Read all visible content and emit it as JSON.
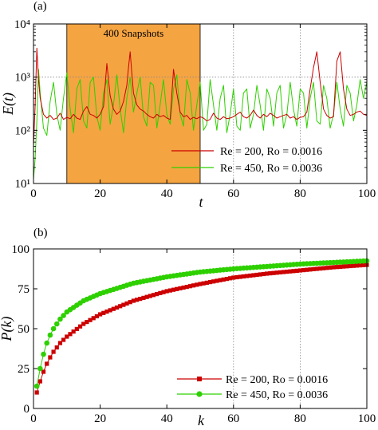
{
  "colors": {
    "red": "#cc0000",
    "green": "#2ed000",
    "highlight": "#f5a442",
    "refline": "#888888"
  },
  "chart_data": [
    {
      "type": "line",
      "panel_label": "(a)",
      "xlabel": "t",
      "ylabel": "E(t)",
      "xlim": [
        0,
        100
      ],
      "ylim": [
        10,
        10000
      ],
      "yscale": "log",
      "x_ticks": [
        "0",
        "20",
        "40",
        "60",
        "80",
        "100"
      ],
      "y_ticks": [
        "10¹",
        "10²",
        "10³",
        "10⁴"
      ],
      "y_tick_values": [
        10,
        100,
        1000,
        10000
      ],
      "ref_vlines": [
        60,
        80
      ],
      "ref_hline": 1000,
      "highlight": {
        "x_start": 10,
        "x_end": 50,
        "label": "400 Snapshots"
      },
      "legend_position": "bottom-right",
      "series": [
        {
          "name": "Re = 200, Ro = 0.0016",
          "color": "#cc0000",
          "x": [
            0,
            0.5,
            1,
            1.5,
            2,
            3,
            4,
            5,
            6,
            7,
            8,
            9,
            10,
            11,
            12,
            13,
            14,
            15,
            16,
            17,
            18,
            19,
            20,
            21,
            22,
            23,
            24,
            25,
            26,
            27,
            28,
            28.5,
            29,
            29.5,
            30,
            31,
            32,
            33,
            34,
            35,
            36,
            37,
            38,
            39,
            40,
            41,
            42,
            43,
            44,
            45,
            46,
            47,
            48,
            49,
            50,
            51,
            52,
            53,
            54,
            55,
            56,
            57,
            58,
            59,
            60,
            61,
            62,
            63,
            64,
            65,
            66,
            67,
            68,
            69,
            70,
            71,
            72,
            73,
            74,
            75,
            76,
            77,
            78,
            79,
            80,
            81,
            82,
            83,
            84,
            85,
            86,
            87,
            88,
            89,
            90,
            91,
            92,
            93,
            94,
            95,
            96,
            97,
            98,
            99,
            100
          ],
          "y": [
            50,
            300,
            3500,
            900,
            400,
            200,
            170,
            190,
            160,
            170,
            210,
            160,
            175,
            165,
            200,
            170,
            160,
            230,
            280,
            200,
            190,
            170,
            200,
            280,
            1800,
            450,
            250,
            200,
            230,
            350,
            700,
            1500,
            3000,
            1200,
            500,
            300,
            250,
            230,
            200,
            180,
            170,
            200,
            180,
            190,
            170,
            160,
            1400,
            500,
            220,
            180,
            190,
            160,
            175,
            165,
            180,
            170,
            150,
            160,
            210,
            170,
            160,
            180,
            165,
            170,
            180,
            200,
            220,
            180,
            170,
            190,
            240,
            190,
            170,
            200,
            180,
            210,
            190,
            170,
            180,
            190,
            200,
            170,
            180,
            160,
            175,
            180,
            220,
            600,
            1500,
            3000,
            800,
            250,
            190,
            170,
            180,
            2000,
            3000,
            600,
            250,
            190,
            200,
            220,
            230,
            200,
            190
          ]
        },
        {
          "name": "Re = 450, Ro = 0.0036",
          "color": "#2ed000",
          "x": [
            0,
            0.5,
            1,
            1.5,
            2,
            3,
            4,
            5,
            6,
            7,
            8,
            9,
            10,
            11,
            12,
            13,
            14,
            15,
            16,
            17,
            18,
            19,
            20,
            21,
            22,
            23,
            24,
            25,
            26,
            27,
            28,
            29,
            30,
            31,
            32,
            33,
            34,
            35,
            36,
            37,
            38,
            39,
            40,
            41,
            42,
            43,
            44,
            45,
            46,
            47,
            48,
            49,
            50,
            51,
            52,
            53,
            54,
            55,
            56,
            57,
            58,
            59,
            60,
            61,
            62,
            63,
            64,
            65,
            66,
            67,
            68,
            69,
            70,
            71,
            72,
            73,
            74,
            75,
            76,
            77,
            78,
            79,
            80,
            81,
            82,
            83,
            84,
            85,
            86,
            87,
            88,
            89,
            90,
            91,
            92,
            93,
            94,
            95,
            96,
            97,
            98,
            99,
            100
          ],
          "y": [
            12,
            30,
            150,
            1400,
            500,
            110,
            80,
            350,
            800,
            200,
            100,
            400,
            1200,
            250,
            90,
            600,
            900,
            150,
            110,
            800,
            1000,
            180,
            100,
            500,
            900,
            130,
            300,
            1100,
            250,
            90,
            400,
            1000,
            220,
            500,
            1000,
            180,
            120,
            800,
            700,
            110,
            300,
            900,
            200,
            130,
            600,
            1100,
            200,
            120,
            900,
            500,
            100,
            300,
            800,
            100,
            130,
            900,
            300,
            100,
            400,
            700,
            90,
            200,
            600,
            120,
            100,
            500,
            600,
            110,
            200,
            700,
            300,
            100,
            600,
            400,
            120,
            500,
            700,
            110,
            200,
            800,
            250,
            120,
            600,
            500,
            110,
            400,
            800,
            150,
            130,
            700,
            400,
            110,
            200,
            800,
            250,
            120,
            700,
            500,
            150,
            300,
            900,
            400,
            800
          ]
        }
      ]
    },
    {
      "type": "line",
      "panel_label": "(b)",
      "xlabel": "k",
      "ylabel": "P(k)",
      "xlim": [
        0,
        100
      ],
      "ylim": [
        0,
        100
      ],
      "x_ticks": [
        "0",
        "20",
        "40",
        "60",
        "80",
        "100"
      ],
      "y_ticks": [
        "0",
        "25",
        "50",
        "75",
        "100"
      ],
      "y_tick_values": [
        0,
        25,
        50,
        75,
        100
      ],
      "ref_vlines": [
        60,
        80
      ],
      "legend_position": "bottom-right",
      "series": [
        {
          "name": "Re = 200, Ro = 0.0016",
          "color": "#cc0000",
          "marker": "square",
          "k_start": 1,
          "k_end": 100,
          "anchors": [
            [
              1,
              10
            ],
            [
              2,
              17
            ],
            [
              3,
              23
            ],
            [
              4,
              28
            ],
            [
              5,
              32
            ],
            [
              6,
              35.5
            ],
            [
              8,
              41
            ],
            [
              10,
              45
            ],
            [
              15,
              53
            ],
            [
              20,
              59
            ],
            [
              30,
              67.5
            ],
            [
              40,
              73.5
            ],
            [
              50,
              78
            ],
            [
              60,
              82
            ],
            [
              70,
              84.5
            ],
            [
              80,
              86.5
            ],
            [
              90,
              88.5
            ],
            [
              100,
              90
            ]
          ]
        },
        {
          "name": "Re = 450, Ro = 0.0036",
          "color": "#2ed000",
          "marker": "circle",
          "k_start": 1,
          "k_end": 100,
          "anchors": [
            [
              1,
              14
            ],
            [
              2,
              25
            ],
            [
              3,
              34
            ],
            [
              4,
              41
            ],
            [
              5,
              46
            ],
            [
              6,
              50
            ],
            [
              8,
              56
            ],
            [
              10,
              60.5
            ],
            [
              15,
              67.5
            ],
            [
              20,
              72
            ],
            [
              30,
              78.5
            ],
            [
              40,
              82.5
            ],
            [
              50,
              85.5
            ],
            [
              60,
              87.5
            ],
            [
              70,
              89
            ],
            [
              80,
              90.5
            ],
            [
              90,
              91.5
            ],
            [
              100,
              92.5
            ]
          ]
        }
      ]
    }
  ]
}
